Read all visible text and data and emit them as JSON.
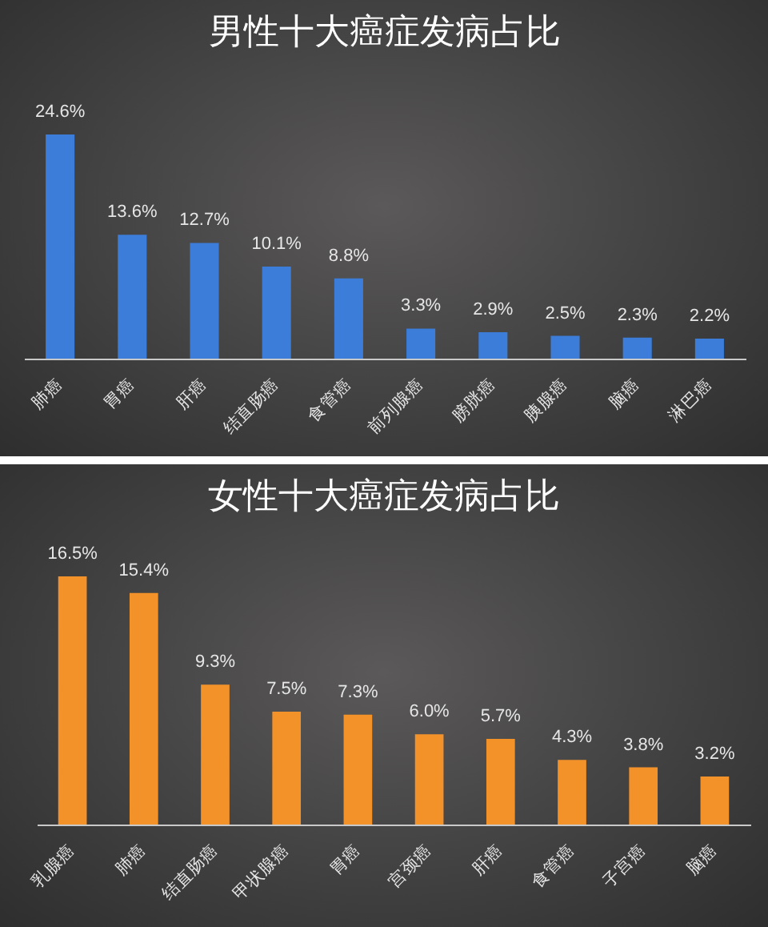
{
  "chart_data": [
    {
      "type": "bar",
      "title": "男性十大癌症发病占比",
      "categories": [
        "肺癌",
        "胃癌",
        "肝癌",
        "结直肠癌",
        "食管癌",
        "前列腺癌",
        "膀胱癌",
        "胰腺癌",
        "脑癌",
        "淋巴癌"
      ],
      "values": [
        24.6,
        13.6,
        12.7,
        10.1,
        8.8,
        3.3,
        2.9,
        2.5,
        2.3,
        2.2
      ],
      "value_labels": [
        "24.6%",
        "13.6%",
        "12.7%",
        "10.1%",
        "8.8%",
        "3.3%",
        "2.9%",
        "2.5%",
        "2.3%",
        "2.2%"
      ],
      "color": "#3b7dd8",
      "tick_labels": "x"
    },
    {
      "type": "bar",
      "title": "女性十大癌症发病占比",
      "categories": [
        "乳腺癌",
        "肺癌",
        "结直肠癌",
        "甲状腺癌",
        "胃癌",
        "宫颈癌",
        "肝癌",
        "食管癌",
        "子宫癌",
        "脑癌"
      ],
      "values": [
        16.5,
        15.4,
        9.3,
        7.5,
        7.3,
        6.0,
        5.7,
        4.3,
        3.8,
        3.2
      ],
      "value_labels": [
        "16.5%",
        "15.4%",
        "9.3%",
        "7.5%",
        "7.3%",
        "6.0%",
        "5.7%",
        "4.3%",
        "3.8%",
        "3.2%"
      ],
      "color": "#f4922a",
      "tick_labels": "x"
    }
  ]
}
